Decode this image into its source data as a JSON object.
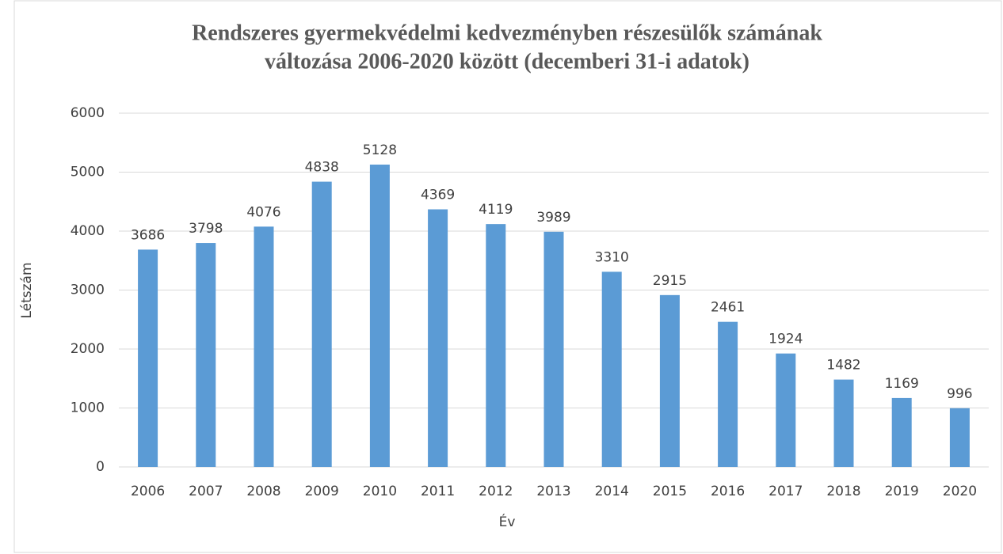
{
  "chart_data": {
    "type": "bar",
    "title": [
      "Rendszeres gyermekvédelmi kedvezményben részesülők számának",
      "változása 2006-2020 között (decemberi 31-i adatok)"
    ],
    "x_label": "Év",
    "y_label": "Létszám",
    "categories": [
      "2006",
      "2007",
      "2008",
      "2009",
      "2010",
      "2011",
      "2012",
      "2013",
      "2014",
      "2015",
      "2016",
      "2017",
      "2018",
      "2019",
      "2020"
    ],
    "values": [
      3686,
      3798,
      4076,
      4838,
      5128,
      4369,
      4119,
      3989,
      3310,
      2915,
      2461,
      1924,
      1482,
      1169,
      996
    ],
    "color": "#5b9bd5",
    "ylim": [
      0,
      6000
    ],
    "yticks": [
      0,
      1000,
      2000,
      3000,
      4000,
      5000,
      6000
    ],
    "grid": true
  }
}
